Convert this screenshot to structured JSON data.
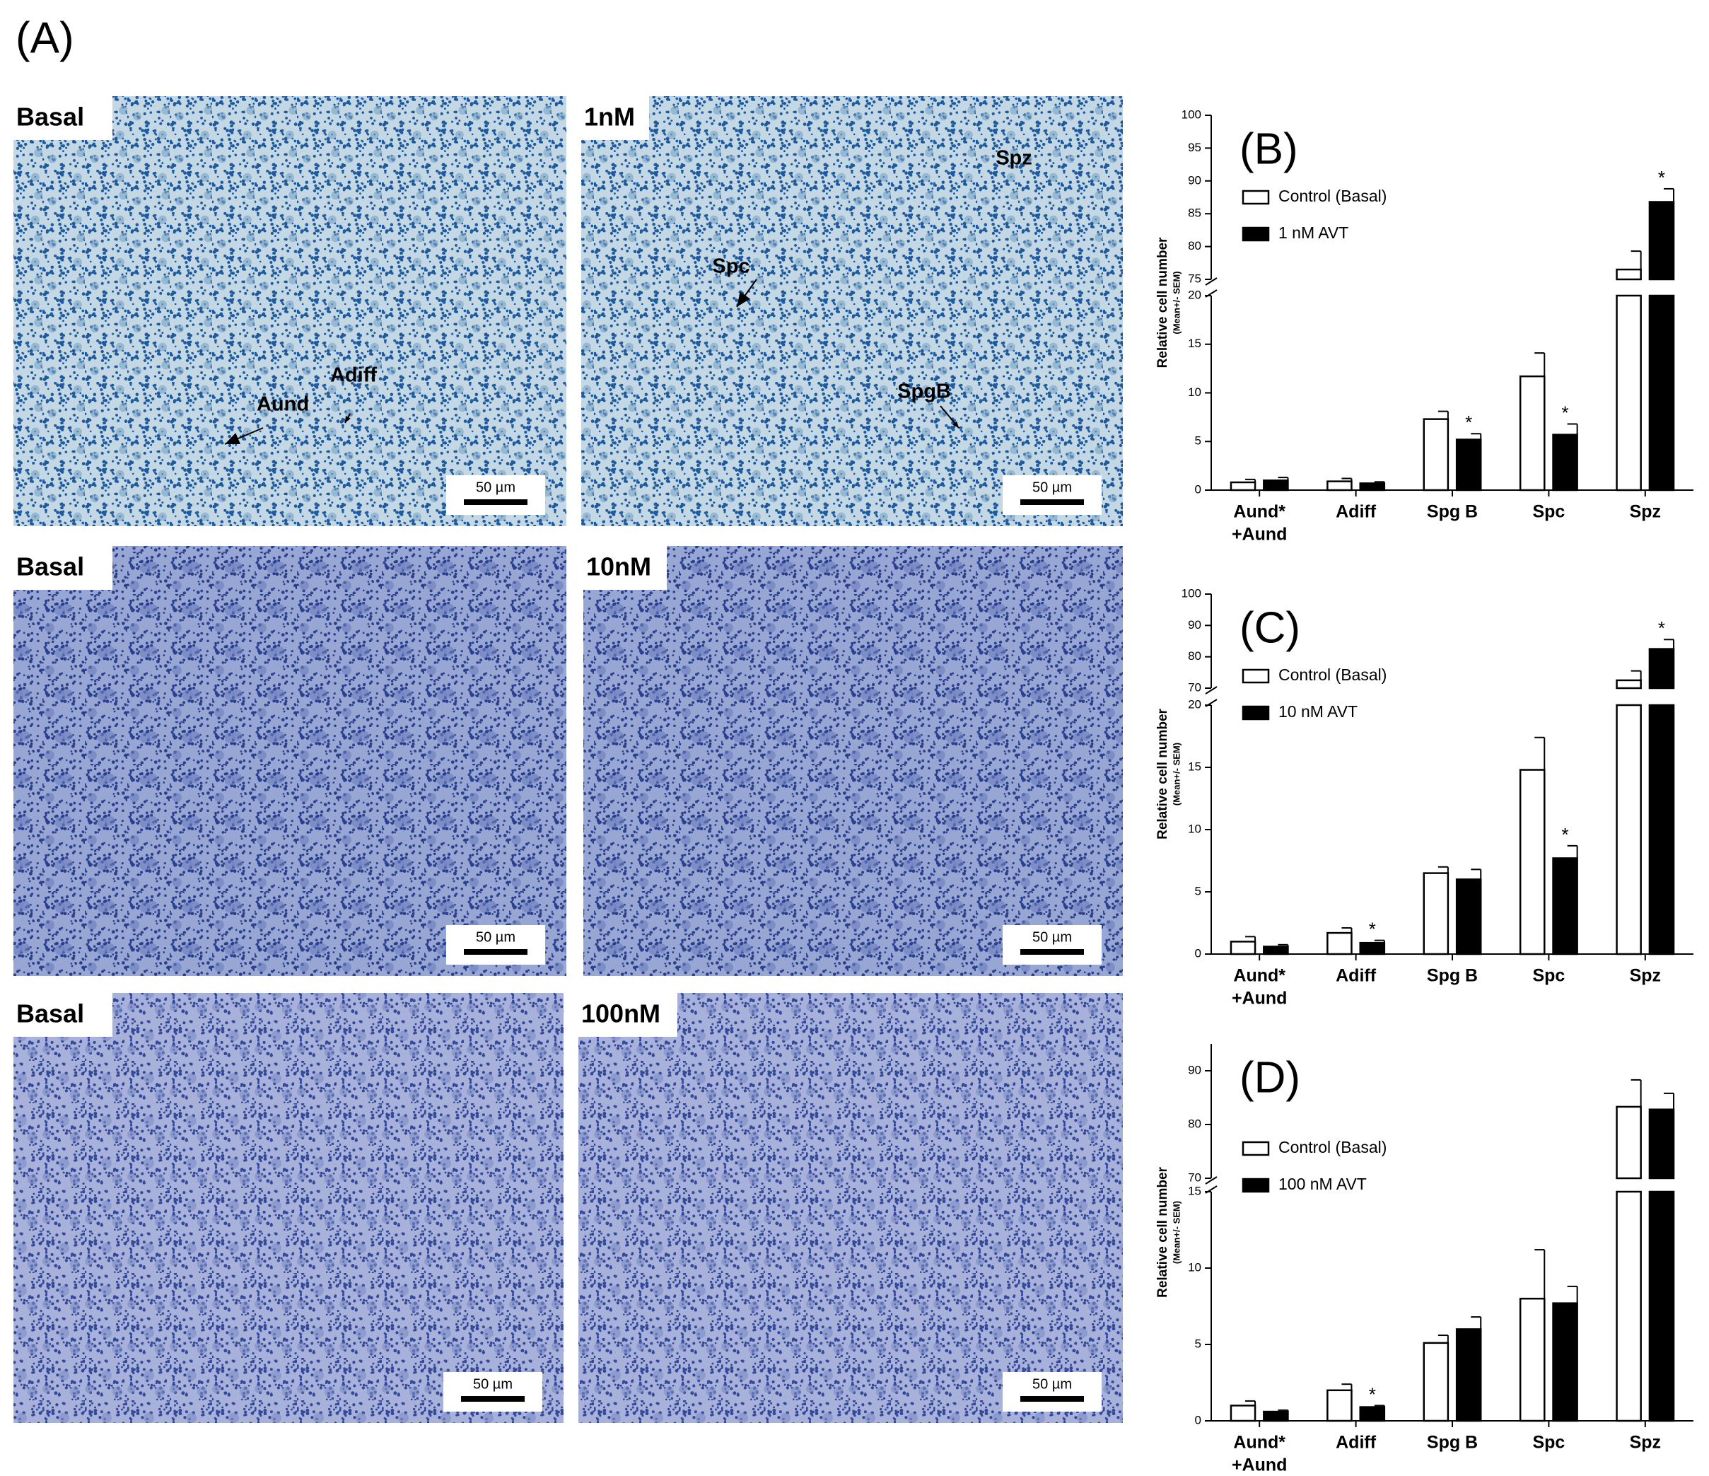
{
  "panel_label": "(A)",
  "micrographs": [
    {
      "label": "Basal",
      "annotations": [
        "Aund",
        "Adiff"
      ],
      "scale_bar": "50 µm"
    },
    {
      "label": "1nM",
      "annotations": [
        "Spc",
        "Spz",
        "SpgB"
      ],
      "scale_bar": "50 µm"
    },
    {
      "label": "Basal",
      "annotations": [],
      "scale_bar": "50 µm"
    },
    {
      "label": "10nM",
      "annotations": [],
      "scale_bar": "50 µm"
    },
    {
      "label": "Basal",
      "annotations": [],
      "scale_bar": "50 µm"
    },
    {
      "label": "100nM",
      "annotations": [],
      "scale_bar": "50 µm"
    }
  ],
  "chart_data": [
    {
      "type": "bar",
      "title": "(B)",
      "y_label": "Relative cell number",
      "y_label_sub": "(Mean+/- SEM)",
      "categories": [
        [
          "Aund*",
          "+Aund"
        ],
        [
          "Adiff"
        ],
        [
          "Spg B"
        ],
        [
          "Spc"
        ],
        [
          "Spz"
        ]
      ],
      "ylim_lower": [
        0,
        20
      ],
      "yticks_lower": [
        0,
        5,
        10,
        15,
        20
      ],
      "ylim_upper": [
        75,
        100
      ],
      "yticks_upper": [
        75,
        80,
        85,
        90,
        95,
        100
      ],
      "legend": "upper left",
      "series": [
        {
          "name": "Control (Basal)",
          "color": "#ffffff",
          "values": [
            0.8,
            0.9,
            7.3,
            11.7,
            76.5
          ],
          "errors": [
            0.3,
            0.3,
            0.8,
            2.4,
            2.8
          ],
          "significance": [
            null,
            null,
            null,
            null,
            null
          ]
        },
        {
          "name": "1 nM AVT",
          "color": "#000000",
          "values": [
            1.0,
            0.7,
            5.2,
            5.7,
            86.8
          ],
          "errors": [
            0.3,
            0.15,
            0.6,
            1.1,
            2.0
          ],
          "significance": [
            null,
            null,
            "*",
            "*",
            "*"
          ]
        }
      ]
    },
    {
      "type": "bar",
      "title": "(C)",
      "y_label": "Relative cell number",
      "y_label_sub": "(Mean+/- SEM)",
      "categories": [
        [
          "Aund*",
          "+Aund"
        ],
        [
          "Adiff"
        ],
        [
          "Spg B"
        ],
        [
          "Spc"
        ],
        [
          "Spz"
        ]
      ],
      "ylim_lower": [
        0,
        20
      ],
      "yticks_lower": [
        0,
        5,
        10,
        15,
        20
      ],
      "ylim_upper": [
        70,
        100
      ],
      "yticks_upper": [
        70,
        80,
        90,
        100
      ],
      "legend": "upper left",
      "series": [
        {
          "name": "Control (Basal)",
          "color": "#ffffff",
          "values": [
            1.0,
            1.7,
            6.5,
            14.8,
            72.5
          ],
          "errors": [
            0.4,
            0.4,
            0.5,
            2.6,
            3.0
          ],
          "significance": [
            null,
            null,
            null,
            null,
            null
          ]
        },
        {
          "name": "10 nM AVT",
          "color": "#000000",
          "values": [
            0.6,
            0.9,
            6.0,
            7.7,
            82.5
          ],
          "errors": [
            0.15,
            0.2,
            0.8,
            1.0,
            3.0
          ],
          "significance": [
            null,
            "*",
            null,
            "*",
            "*"
          ]
        }
      ]
    },
    {
      "type": "bar",
      "title": "(D)",
      "y_label": "Relative cell number",
      "y_label_sub": "(Mean+/- SEM)",
      "categories": [
        [
          "Aund*",
          "+Aund"
        ],
        [
          "Adiff"
        ],
        [
          "Spg B"
        ],
        [
          "Spc"
        ],
        [
          "Spz"
        ]
      ],
      "ylim_lower": [
        0,
        15
      ],
      "yticks_lower": [
        0,
        5,
        10,
        15
      ],
      "ylim_upper": [
        70,
        95
      ],
      "yticks_upper": [
        70,
        80,
        90
      ],
      "legend": "upper left",
      "series": [
        {
          "name": "Control (Basal)",
          "color": "#ffffff",
          "values": [
            1.0,
            2.0,
            5.1,
            8.0,
            83.3
          ],
          "errors": [
            0.3,
            0.4,
            0.5,
            3.2,
            5.0
          ],
          "significance": [
            null,
            null,
            null,
            null,
            null
          ]
        },
        {
          "name": "100 nM AVT",
          "color": "#000000",
          "values": [
            0.6,
            0.9,
            6.0,
            7.7,
            82.8
          ],
          "errors": [
            0.1,
            0.1,
            0.8,
            1.1,
            3.0
          ],
          "significance": [
            null,
            "*",
            null,
            null,
            null
          ]
        }
      ]
    }
  ]
}
